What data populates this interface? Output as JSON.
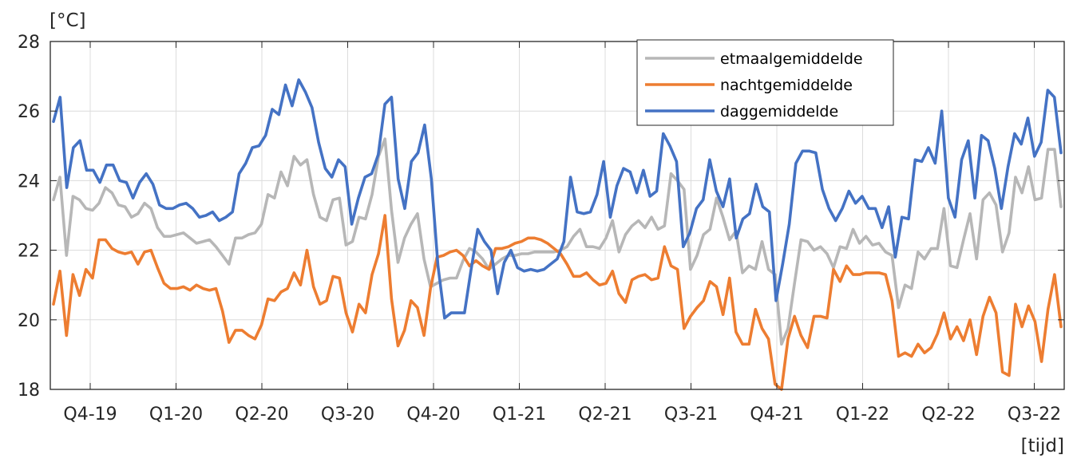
{
  "chart_data": {
    "type": "line",
    "ylabel": "[°C]",
    "xlabel": "[tijd]",
    "ylim": [
      18,
      28
    ],
    "yticks": [
      "18",
      "20",
      "22",
      "24",
      "26",
      "28"
    ],
    "xticks": [
      "Q4-19",
      "Q1-20",
      "Q2-20",
      "Q3-20",
      "Q4-20",
      "Q1-21",
      "Q2-21",
      "Q3-21",
      "Q4-21",
      "Q1-22",
      "Q2-22",
      "Q3-22"
    ],
    "grid": true,
    "legend_position": "top-right",
    "series": [
      {
        "name": "etmaalgemiddelde",
        "color": "#b7b7b7",
        "values": [
          23.45,
          24.1,
          21.85,
          23.55,
          23.45,
          23.2,
          23.15,
          23.35,
          23.8,
          23.65,
          23.3,
          23.25,
          22.95,
          23.05,
          23.35,
          23.2,
          22.65,
          22.4,
          22.4,
          22.45,
          22.5,
          22.35,
          22.2,
          22.25,
          22.3,
          22.1,
          21.85,
          21.6,
          22.35,
          22.35,
          22.45,
          22.5,
          22.75,
          23.6,
          23.5,
          24.25,
          23.85,
          24.7,
          24.45,
          24.6,
          23.6,
          22.95,
          22.85,
          23.45,
          23.5,
          22.15,
          22.25,
          22.95,
          22.9,
          23.6,
          24.7,
          25.2,
          23.15,
          21.65,
          22.35,
          22.75,
          23.05,
          21.75,
          20.95,
          21.05,
          21.15,
          21.2,
          21.2,
          21.7,
          22.05,
          21.95,
          21.75,
          21.45,
          21.6,
          21.75,
          21.85,
          21.85,
          21.9,
          21.9,
          21.95,
          21.95,
          21.95,
          21.95,
          22.0,
          22.1,
          22.4,
          22.6,
          22.1,
          22.1,
          22.05,
          22.35,
          22.85,
          21.95,
          22.45,
          22.7,
          22.85,
          22.65,
          22.95,
          22.6,
          22.7,
          24.2,
          24.0,
          23.75,
          21.45,
          21.85,
          22.45,
          22.6,
          23.5,
          22.95,
          22.3,
          22.55,
          21.35,
          21.55,
          21.45,
          22.25,
          21.45,
          21.3,
          19.3,
          19.75,
          21.05,
          22.3,
          22.25,
          22.0,
          22.1,
          21.9,
          21.5,
          22.1,
          22.05,
          22.6,
          22.2,
          22.4,
          22.15,
          22.2,
          21.95,
          21.85,
          20.35,
          21.0,
          20.9,
          21.95,
          21.75,
          22.05,
          22.05,
          23.2,
          21.55,
          21.5,
          22.3,
          23.05,
          21.75,
          23.45,
          23.65,
          23.3,
          21.95,
          22.5,
          24.1,
          23.65,
          24.4,
          23.45,
          23.5,
          24.9,
          24.9,
          23.25
        ]
      },
      {
        "name": "nachtgemiddelde",
        "color": "#ed7d31",
        "values": [
          20.45,
          21.4,
          19.55,
          21.3,
          20.7,
          21.45,
          21.2,
          22.3,
          22.3,
          22.05,
          21.95,
          21.9,
          21.95,
          21.6,
          21.95,
          22.0,
          21.5,
          21.05,
          20.9,
          20.9,
          20.95,
          20.85,
          21.0,
          20.9,
          20.85,
          20.9,
          20.25,
          19.35,
          19.7,
          19.7,
          19.55,
          19.45,
          19.85,
          20.6,
          20.55,
          20.8,
          20.9,
          21.35,
          21.0,
          22.0,
          20.95,
          20.45,
          20.55,
          21.25,
          21.2,
          20.2,
          19.65,
          20.45,
          20.2,
          21.3,
          21.9,
          23.0,
          20.6,
          19.25,
          19.7,
          20.55,
          20.35,
          19.55,
          20.9,
          21.8,
          21.85,
          21.95,
          22.0,
          21.85,
          21.55,
          21.7,
          21.55,
          21.45,
          22.05,
          22.05,
          22.1,
          22.2,
          22.25,
          22.35,
          22.35,
          22.3,
          22.2,
          22.05,
          21.9,
          21.6,
          21.25,
          21.25,
          21.35,
          21.15,
          21.0,
          21.05,
          21.4,
          20.75,
          20.5,
          21.15,
          21.25,
          21.3,
          21.15,
          21.2,
          22.1,
          21.55,
          21.45,
          19.75,
          20.1,
          20.35,
          20.55,
          21.1,
          20.95,
          20.15,
          21.2,
          19.65,
          19.3,
          19.3,
          20.3,
          19.75,
          19.45,
          18.15,
          18.0,
          19.45,
          20.1,
          19.55,
          19.2,
          20.1,
          20.1,
          20.05,
          21.45,
          21.1,
          21.55,
          21.3,
          21.3,
          21.35,
          21.35,
          21.35,
          21.3,
          20.55,
          18.95,
          19.05,
          18.95,
          19.3,
          19.05,
          19.2,
          19.6,
          20.2,
          19.45,
          19.8,
          19.4,
          20.0,
          19.0,
          20.1,
          20.65,
          20.2,
          18.5,
          18.4,
          20.45,
          19.8,
          20.4,
          19.95,
          18.8,
          20.3,
          21.3,
          19.8
        ]
      },
      {
        "name": "daggemiddelde",
        "color": "#4472c4",
        "values": [
          25.7,
          26.4,
          23.8,
          24.95,
          25.15,
          24.3,
          24.3,
          23.95,
          24.45,
          24.45,
          24.0,
          23.95,
          23.5,
          23.95,
          24.2,
          23.9,
          23.3,
          23.2,
          23.2,
          23.3,
          23.35,
          23.2,
          22.95,
          23.0,
          23.1,
          22.85,
          22.95,
          23.1,
          24.2,
          24.5,
          24.95,
          25.0,
          25.3,
          26.05,
          25.9,
          26.75,
          26.15,
          26.9,
          26.55,
          26.1,
          25.1,
          24.35,
          24.1,
          24.6,
          24.4,
          22.75,
          23.5,
          24.1,
          24.2,
          24.75,
          26.2,
          26.4,
          24.05,
          23.2,
          24.55,
          24.8,
          25.6,
          24.05,
          21.55,
          20.05,
          20.2,
          20.2,
          20.2,
          21.45,
          22.6,
          22.25,
          22.0,
          20.75,
          21.65,
          22.0,
          21.5,
          21.4,
          21.45,
          21.4,
          21.45,
          21.6,
          21.75,
          22.25,
          24.1,
          23.1,
          23.05,
          23.1,
          23.6,
          24.55,
          22.95,
          23.85,
          24.35,
          24.25,
          23.65,
          24.3,
          23.55,
          23.7,
          25.35,
          25.0,
          24.55,
          22.1,
          22.5,
          23.2,
          23.45,
          24.6,
          23.7,
          23.25,
          24.05,
          22.35,
          22.9,
          23.05,
          23.9,
          23.25,
          23.1,
          20.55,
          21.6,
          22.75,
          24.5,
          24.85,
          24.85,
          24.8,
          23.75,
          23.2,
          22.85,
          23.2,
          23.7,
          23.35,
          23.55,
          23.2,
          23.2,
          22.65,
          23.25,
          21.8,
          22.95,
          22.9,
          24.6,
          24.55,
          24.95,
          24.5,
          26.0,
          23.5,
          22.95,
          24.6,
          25.15,
          23.5,
          25.3,
          25.15,
          24.35,
          23.2,
          24.4,
          25.35,
          25.05,
          25.8,
          24.7,
          25.1,
          26.6,
          26.4,
          24.8
        ]
      }
    ]
  }
}
